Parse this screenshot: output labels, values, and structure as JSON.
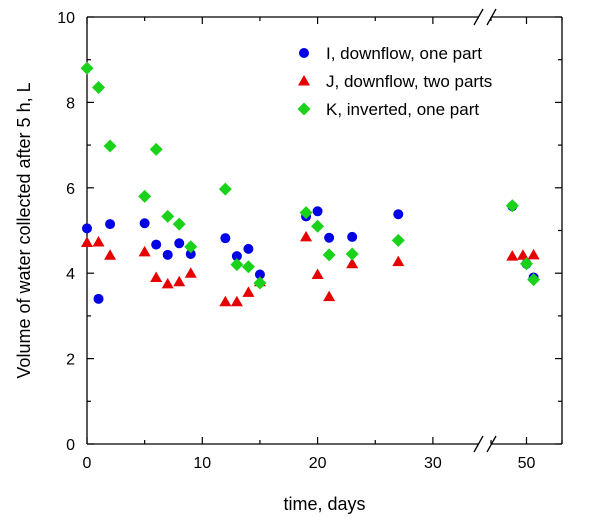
{
  "chart_data": {
    "type": "scatter",
    "xlabel": "time, days",
    "ylabel": "Volume of water collected after 5 h, L",
    "ylim": [
      0,
      10
    ],
    "yticks": [
      "0",
      "2",
      "4",
      "6",
      "8",
      "10"
    ],
    "x_segments": [
      {
        "range": [
          0,
          34
        ],
        "ticks": [
          0,
          10,
          20,
          30
        ],
        "tick_labels": [
          "0",
          "10",
          "20",
          "30"
        ]
      },
      {
        "range": [
          45,
          55
        ],
        "ticks": [
          50
        ],
        "tick_labels": [
          "50"
        ]
      }
    ],
    "axis_break": true,
    "grid": false,
    "legend_position": "top-right",
    "series": [
      {
        "name": "I, downflow, one part",
        "marker": "circle",
        "color": "#0000e6",
        "points": [
          [
            0,
            5.05
          ],
          [
            1,
            3.4
          ],
          [
            2,
            5.15
          ],
          [
            5,
            5.17
          ],
          [
            6,
            4.67
          ],
          [
            7,
            4.43
          ],
          [
            8,
            4.7
          ],
          [
            9,
            4.45
          ],
          [
            12,
            4.82
          ],
          [
            13,
            4.4
          ],
          [
            14,
            4.57
          ],
          [
            15,
            3.97
          ],
          [
            19,
            5.33
          ],
          [
            20,
            5.45
          ],
          [
            21,
            4.83
          ],
          [
            23,
            4.85
          ],
          [
            27,
            5.38
          ],
          [
            48,
            5.57
          ],
          [
            50,
            4.22
          ],
          [
            51,
            3.9
          ]
        ]
      },
      {
        "name": "J, downflow, two parts",
        "marker": "triangle",
        "color": "#e60000",
        "points": [
          [
            0,
            4.72
          ],
          [
            1,
            4.73
          ],
          [
            2,
            4.42
          ],
          [
            5,
            4.5
          ],
          [
            6,
            3.9
          ],
          [
            7,
            3.75
          ],
          [
            8,
            3.8
          ],
          [
            9,
            4.0
          ],
          [
            12,
            3.33
          ],
          [
            13,
            3.33
          ],
          [
            14,
            3.55
          ],
          [
            15,
            3.8
          ],
          [
            19,
            4.85
          ],
          [
            20,
            3.97
          ],
          [
            21,
            3.45
          ],
          [
            23,
            4.22
          ],
          [
            27,
            4.27
          ],
          [
            48,
            4.4
          ],
          [
            49.5,
            4.42
          ],
          [
            51,
            4.43
          ]
        ]
      },
      {
        "name": "K, inverted, one part",
        "marker": "diamond",
        "color": "#19d219",
        "points": [
          [
            0,
            8.8
          ],
          [
            1,
            8.35
          ],
          [
            2,
            6.98
          ],
          [
            5,
            5.8
          ],
          [
            6,
            6.9
          ],
          [
            7,
            5.33
          ],
          [
            8,
            5.15
          ],
          [
            9,
            4.62
          ],
          [
            12,
            5.97
          ],
          [
            13,
            4.2
          ],
          [
            14,
            4.15
          ],
          [
            15,
            3.77
          ],
          [
            19,
            5.42
          ],
          [
            20,
            5.1
          ],
          [
            21,
            4.43
          ],
          [
            23,
            4.45
          ],
          [
            27,
            4.77
          ],
          [
            48,
            5.58
          ],
          [
            50,
            4.22
          ],
          [
            51,
            3.85
          ]
        ]
      }
    ]
  }
}
